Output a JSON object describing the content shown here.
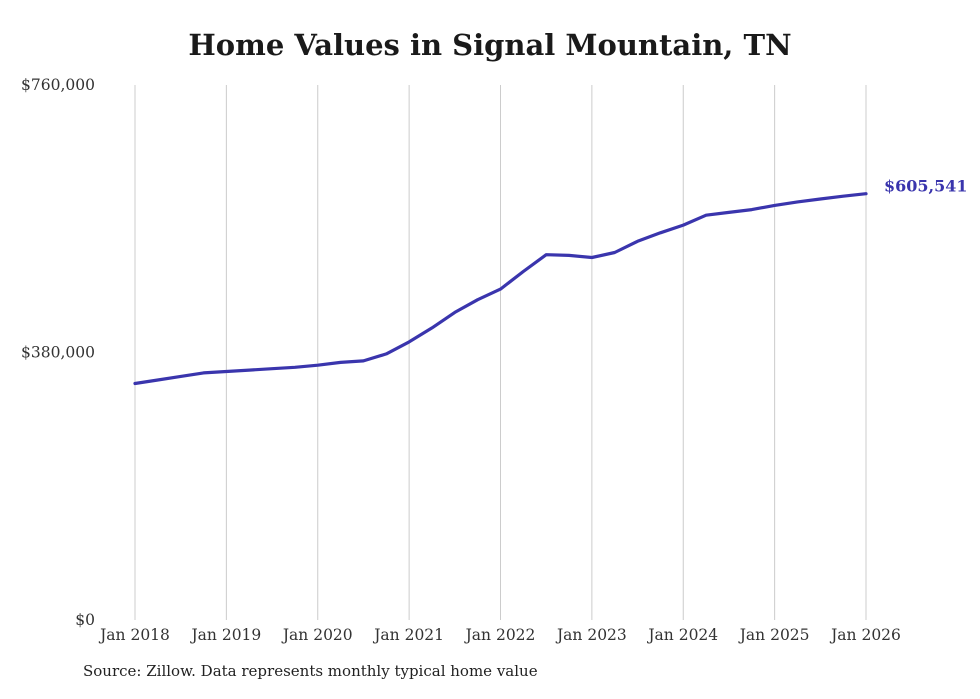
{
  "title": "Home Values in Signal Mountain, TN",
  "source_note": "Source: Zillow. Data represents monthly typical home value",
  "end_label": "$605,541",
  "colors": {
    "line": "#3a35ad",
    "end_label": "#3a35ad",
    "grid": "#cccccc",
    "axis_text": "#333333",
    "title_text": "#1a1a1a",
    "background": "#ffffff"
  },
  "chart_data": {
    "type": "line",
    "title": "Home Values in Signal Mountain, TN",
    "xlabel": "",
    "ylabel": "",
    "xlim": [
      2018,
      2026
    ],
    "ylim": [
      0,
      760000
    ],
    "grid": "vertical-only",
    "legend": "none",
    "x_tick_positions": [
      2018,
      2019,
      2020,
      2021,
      2022,
      2023,
      2024,
      2025,
      2026
    ],
    "x_tick_labels": [
      "Jan 2018",
      "Jan 2019",
      "Jan 2020",
      "Jan 2021",
      "Jan 2022",
      "Jan 2023",
      "Jan 2024",
      "Jan 2025",
      "Jan 2026"
    ],
    "y_ticks": [
      {
        "label": "$0",
        "value": 0
      },
      {
        "label": "$380,000",
        "value": 380000
      },
      {
        "label": "$760,000",
        "value": 760000
      }
    ],
    "series_name": "Typical home value",
    "x": [
      2018.0,
      2018.25,
      2018.5,
      2018.75,
      2019.0,
      2019.25,
      2019.5,
      2019.75,
      2020.0,
      2020.25,
      2020.5,
      2020.75,
      2021.0,
      2021.25,
      2021.5,
      2021.75,
      2022.0,
      2022.25,
      2022.5,
      2022.75,
      2023.0,
      2023.25,
      2023.5,
      2023.75,
      2024.0,
      2024.25,
      2024.5,
      2024.75,
      2025.0,
      2025.25,
      2025.5,
      2025.75,
      2026.0
    ],
    "values": [
      336000,
      341000,
      346000,
      351000,
      353000,
      355000,
      357000,
      359000,
      362000,
      366000,
      368000,
      378000,
      395000,
      415000,
      437000,
      455000,
      470000,
      495000,
      519000,
      518000,
      515000,
      522000,
      538000,
      550000,
      561000,
      575000,
      579000,
      583000,
      589000,
      594000,
      598000,
      602000,
      605541
    ],
    "final_value": 605541,
    "final_value_label": "$605,541"
  }
}
